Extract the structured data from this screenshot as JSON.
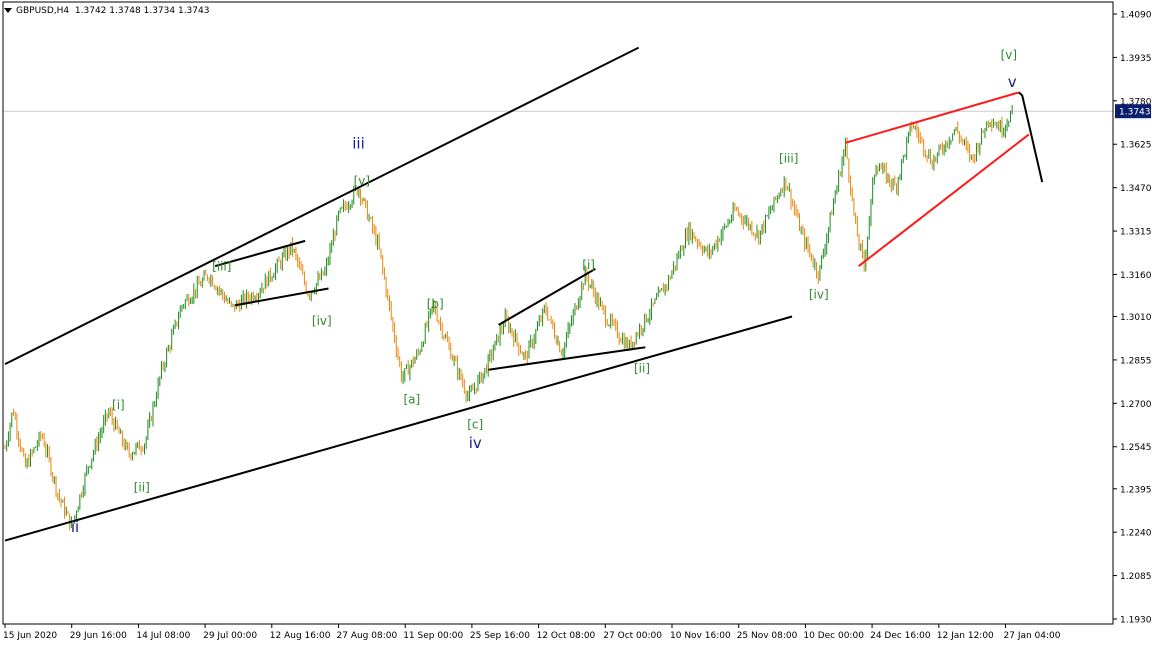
{
  "header": {
    "symbol": "GBPUSD,H4",
    "ohlc": "1.3742 1.3748 1.3734 1.3743"
  },
  "colors": {
    "background": "#ffffff",
    "axis": "#000000",
    "bull_candle": "#1e8c1e",
    "bear_candle": "#e8860c",
    "trendline": "#000000",
    "triangle": "#ff1a1a",
    "wave_primary": "#1a1a8c",
    "wave_minor": "#2e8b2e",
    "price_marker_bg": "#0a1e6e",
    "price_marker_text": "#ffffff",
    "price_line": "#cccccc"
  },
  "chart_data": {
    "type": "candlestick",
    "symbol": "GBPUSD",
    "timeframe": "H4",
    "current_price": "1.3743",
    "ylim": [
      1.193,
      1.409
    ],
    "y_ticks": [
      "1.4090",
      "1.3935",
      "1.3780",
      "1.3625",
      "1.3470",
      "1.3315",
      "1.3160",
      "1.3010",
      "1.2855",
      "1.2700",
      "1.2545",
      "1.2395",
      "1.2240",
      "1.2085",
      "1.1930"
    ],
    "x_ticks": [
      "15 Jun 2020",
      "29 Jun 16:00",
      "14 Jul 08:00",
      "29 Jul 00:00",
      "12 Aug 16:00",
      "27 Aug 08:00",
      "11 Sep 00:00",
      "25 Sep 16:00",
      "12 Oct 08:00",
      "27 Oct 00:00",
      "10 Nov 16:00",
      "25 Nov 08:00",
      "10 Dec 00:00",
      "24 Dec 16:00",
      "12 Jan 12:00",
      "27 Jan 04:00"
    ],
    "price_path": [
      [
        0,
        1.254
      ],
      [
        0.12,
        1.268
      ],
      [
        0.3,
        1.247
      ],
      [
        0.55,
        1.259
      ],
      [
        0.8,
        1.237
      ],
      [
        1.0,
        1.226
      ],
      [
        1.25,
        1.248
      ],
      [
        1.55,
        1.267
      ],
      [
        1.85,
        1.252
      ],
      [
        2.1,
        1.256
      ],
      [
        2.35,
        1.282
      ],
      [
        2.65,
        1.305
      ],
      [
        3.05,
        1.316
      ],
      [
        3.4,
        1.304
      ],
      [
        3.8,
        1.31
      ],
      [
        4.3,
        1.326
      ],
      [
        4.55,
        1.309
      ],
      [
        4.8,
        1.317
      ],
      [
        5.0,
        1.337
      ],
      [
        5.3,
        1.347
      ],
      [
        5.6,
        1.326
      ],
      [
        5.95,
        1.279
      ],
      [
        6.2,
        1.288
      ],
      [
        6.42,
        1.305
      ],
      [
        6.7,
        1.287
      ],
      [
        6.95,
        1.272
      ],
      [
        7.2,
        1.282
      ],
      [
        7.5,
        1.3
      ],
      [
        7.8,
        1.286
      ],
      [
        8.1,
        1.304
      ],
      [
        8.35,
        1.288
      ],
      [
        8.7,
        1.316
      ],
      [
        9.0,
        1.301
      ],
      [
        9.35,
        1.29
      ],
      [
        9.7,
        1.304
      ],
      [
        9.95,
        1.314
      ],
      [
        10.25,
        1.332
      ],
      [
        10.55,
        1.323
      ],
      [
        10.95,
        1.339
      ],
      [
        11.3,
        1.33
      ],
      [
        11.7,
        1.35
      ],
      [
        11.95,
        1.33
      ],
      [
        12.2,
        1.316
      ],
      [
        12.45,
        1.345
      ],
      [
        12.6,
        1.3625
      ],
      [
        12.75,
        1.333
      ],
      [
        12.88,
        1.319
      ],
      [
        13.05,
        1.356
      ],
      [
        13.35,
        1.347
      ],
      [
        13.6,
        1.37
      ],
      [
        13.9,
        1.356
      ],
      [
        14.25,
        1.368
      ],
      [
        14.5,
        1.357
      ],
      [
        14.75,
        1.372
      ],
      [
        14.95,
        1.368
      ],
      [
        15.1,
        1.3743
      ]
    ],
    "lines": [
      {
        "kind": "channel-upper",
        "p1": [
          0,
          1.284
        ],
        "p2": [
          9.5,
          1.397
        ]
      },
      {
        "kind": "channel-lower",
        "p1": [
          0,
          1.221
        ],
        "p2": [
          11.8,
          1.301
        ]
      },
      {
        "kind": "triangle-1-upper",
        "p1": [
          3.15,
          1.319
        ],
        "p2": [
          4.5,
          1.328
        ]
      },
      {
        "kind": "triangle-1-lower",
        "p1": [
          3.45,
          1.305
        ],
        "p2": [
          4.85,
          1.311
        ]
      },
      {
        "kind": "triangle-2-upper",
        "p1": [
          7.4,
          1.298
        ],
        "p2": [
          8.85,
          1.318
        ]
      },
      {
        "kind": "triangle-2-lower",
        "p1": [
          7.25,
          1.282
        ],
        "p2": [
          9.6,
          1.29
        ]
      },
      {
        "kind": "ending-diagonal-upper",
        "p1": [
          12.6,
          1.363
        ],
        "p2": [
          15.2,
          1.381
        ]
      },
      {
        "kind": "ending-diagonal-lower",
        "p1": [
          12.8,
          1.319
        ],
        "p2": [
          15.35,
          1.366
        ]
      },
      {
        "kind": "projection-1",
        "p1": [
          15.2,
          1.381
        ],
        "p2": [
          15.25,
          1.38
        ]
      },
      {
        "kind": "projection-2",
        "p1": [
          15.25,
          1.38
        ],
        "p2": [
          15.55,
          1.349
        ]
      }
    ],
    "wave_labels": [
      {
        "text": "ii",
        "at": [
          1.05,
          1.224
        ],
        "level": "primary"
      },
      {
        "text": "iii",
        "at": [
          5.3,
          1.361
        ],
        "level": "primary"
      },
      {
        "text": "iv",
        "at": [
          7.05,
          1.254
        ],
        "level": "primary"
      },
      {
        "text": "v",
        "at": [
          15.1,
          1.383
        ],
        "level": "primary"
      },
      {
        "text": "[i]",
        "at": [
          1.7,
          1.268
        ],
        "level": "minor"
      },
      {
        "text": "[ii]",
        "at": [
          2.05,
          1.2385
        ],
        "level": "minor"
      },
      {
        "text": "[iii]",
        "at": [
          3.25,
          1.3175
        ],
        "level": "minor"
      },
      {
        "text": "[iv]",
        "at": [
          4.75,
          1.298
        ],
        "level": "minor"
      },
      {
        "text": "[v]",
        "at": [
          5.35,
          1.348
        ],
        "level": "minor"
      },
      {
        "text": "[a]",
        "at": [
          6.1,
          1.27
        ],
        "level": "minor"
      },
      {
        "text": "[b]",
        "at": [
          6.45,
          1.304
        ],
        "level": "minor"
      },
      {
        "text": "[c]",
        "at": [
          7.05,
          1.261
        ],
        "level": "minor"
      },
      {
        "text": "[i]",
        "at": [
          8.75,
          1.318
        ],
        "level": "minor"
      },
      {
        "text": "[ii]",
        "at": [
          9.55,
          1.281
        ],
        "level": "minor"
      },
      {
        "text": "[iii]",
        "at": [
          11.75,
          1.356
        ],
        "level": "minor"
      },
      {
        "text": "[iv]",
        "at": [
          12.2,
          1.3075
        ],
        "level": "minor"
      },
      {
        "text": "[v]",
        "at": [
          15.05,
          1.393
        ],
        "level": "minor"
      }
    ]
  }
}
